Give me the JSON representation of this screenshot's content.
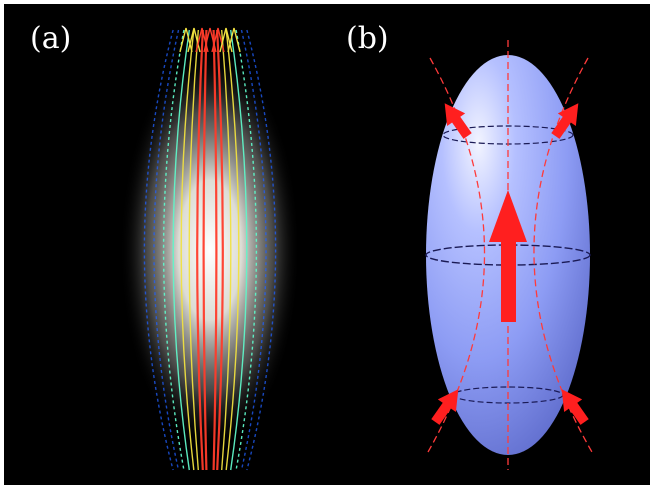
{
  "panels": [
    {
      "label": "(a)"
    },
    {
      "label": "(b)"
    }
  ],
  "colors": {
    "background": "#000000",
    "frame": "#ffffff",
    "ellipsoid": "#8f9fff",
    "arrow": "#ff2a2a",
    "field_line_hot": "#ff3b2a",
    "field_line_warm": "#f0e040",
    "field_line_cool": "#5ff5c8",
    "field_line_cold": "#2060ff",
    "equator_ring": "#1a1a55",
    "dashed_guide": "#ff3a3a"
  }
}
